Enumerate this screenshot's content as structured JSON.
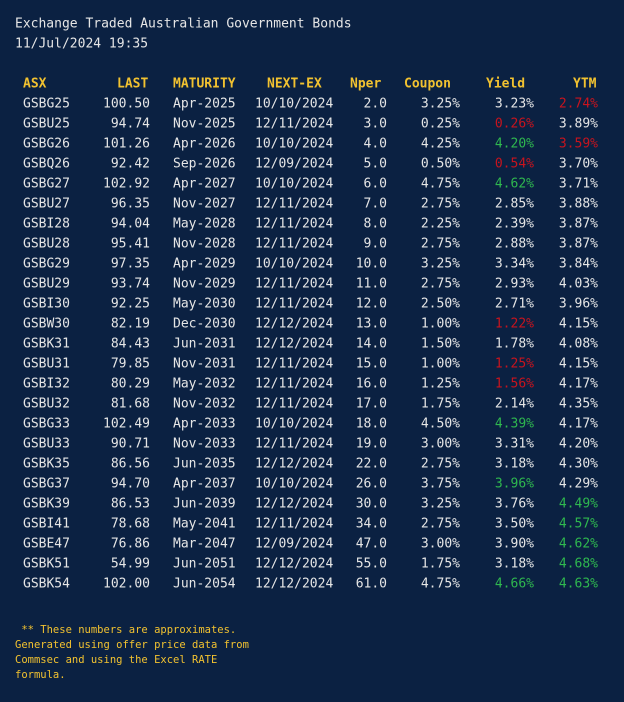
{
  "title": "Exchange Traded Australian Government Bonds",
  "timestamp": "11/Jul/2024 19:35",
  "table": {
    "header": [
      "ASX",
      "LAST",
      "MATURITY",
      "NEXT-EX",
      "Nper",
      "Coupon",
      "Yield",
      "YTM"
    ],
    "rows": [
      [
        "GSBG25",
        "100.50",
        "Apr-2025",
        "10/10/2024",
        "2.0",
        "3.25%",
        "3.23%",
        {
          "text": "2.74%",
          "color": "#c8141e"
        }
      ],
      [
        "GSBU25",
        "94.74",
        "Nov-2025",
        "12/11/2024",
        "3.0",
        "0.25%",
        {
          "text": "0.26%",
          "color": "#c8141e"
        },
        "3.89%"
      ],
      [
        "GSBG26",
        "101.26",
        "Apr-2026",
        "10/10/2024",
        "4.0",
        "4.25%",
        {
          "text": "4.20%",
          "color": "#2fb84f"
        },
        {
          "text": "3.59%",
          "color": "#c8141e"
        }
      ],
      [
        "GSBQ26",
        "92.42",
        "Sep-2026",
        "12/09/2024",
        "5.0",
        "0.50%",
        {
          "text": "0.54%",
          "color": "#c8141e"
        },
        "3.70%"
      ],
      [
        "GSBG27",
        "102.92",
        "Apr-2027",
        "10/10/2024",
        "6.0",
        "4.75%",
        {
          "text": "4.62%",
          "color": "#2fb84f"
        },
        "3.71%"
      ],
      [
        "GSBU27",
        "96.35",
        "Nov-2027",
        "12/11/2024",
        "7.0",
        "2.75%",
        "2.85%",
        "3.88%"
      ],
      [
        "GSBI28",
        "94.04",
        "May-2028",
        "12/11/2024",
        "8.0",
        "2.25%",
        "2.39%",
        "3.87%"
      ],
      [
        "GSBU28",
        "95.41",
        "Nov-2028",
        "12/11/2024",
        "9.0",
        "2.75%",
        "2.88%",
        "3.87%"
      ],
      [
        "GSBG29",
        "97.35",
        "Apr-2029",
        "10/10/2024",
        "10.0",
        "3.25%",
        "3.34%",
        "3.84%"
      ],
      [
        "GSBU29",
        "93.74",
        "Nov-2029",
        "12/11/2024",
        "11.0",
        "2.75%",
        "2.93%",
        "4.03%"
      ],
      [
        "GSBI30",
        "92.25",
        "May-2030",
        "12/11/2024",
        "12.0",
        "2.50%",
        "2.71%",
        "3.96%"
      ],
      [
        "GSBW30",
        "82.19",
        "Dec-2030",
        "12/12/2024",
        "13.0",
        "1.00%",
        {
          "text": "1.22%",
          "color": "#c8141e"
        },
        "4.15%"
      ],
      [
        "GSBK31",
        "84.43",
        "Jun-2031",
        "12/12/2024",
        "14.0",
        "1.50%",
        "1.78%",
        "4.08%"
      ],
      [
        "GSBU31",
        "79.85",
        "Nov-2031",
        "12/11/2024",
        "15.0",
        "1.00%",
        {
          "text": "1.25%",
          "color": "#c8141e"
        },
        "4.15%"
      ],
      [
        "GSBI32",
        "80.29",
        "May-2032",
        "12/11/2024",
        "16.0",
        "1.25%",
        {
          "text": "1.56%",
          "color": "#c8141e"
        },
        "4.17%"
      ],
      [
        "GSBU32",
        "81.68",
        "Nov-2032",
        "12/11/2024",
        "17.0",
        "1.75%",
        "2.14%",
        "4.35%"
      ],
      [
        "GSBG33",
        "102.49",
        "Apr-2033",
        "10/10/2024",
        "18.0",
        "4.50%",
        {
          "text": "4.39%",
          "color": "#2fb84f"
        },
        "4.17%"
      ],
      [
        "GSBU33",
        "90.71",
        "Nov-2033",
        "12/11/2024",
        "19.0",
        "3.00%",
        "3.31%",
        "4.20%"
      ],
      [
        "GSBK35",
        "86.56",
        "Jun-2035",
        "12/12/2024",
        "22.0",
        "2.75%",
        "3.18%",
        "4.30%"
      ],
      [
        "GSBG37",
        "94.70",
        "Apr-2037",
        "10/10/2024",
        "26.0",
        "3.75%",
        {
          "text": "3.96%",
          "color": "#2fb84f"
        },
        "4.29%"
      ],
      [
        "GSBK39",
        "86.53",
        "Jun-2039",
        "12/12/2024",
        "30.0",
        "3.25%",
        "3.76%",
        {
          "text": "4.49%",
          "color": "#2fb84f"
        }
      ],
      [
        "GSBI41",
        "78.68",
        "May-2041",
        "12/11/2024",
        "34.0",
        "2.75%",
        "3.50%",
        {
          "text": "4.57%",
          "color": "#2fb84f"
        }
      ],
      [
        "GSBE47",
        "76.86",
        "Mar-2047",
        "12/09/2024",
        "47.0",
        "3.00%",
        "3.90%",
        {
          "text": "4.62%",
          "color": "#2fb84f"
        }
      ],
      [
        "GSBK51",
        "54.99",
        "Jun-2051",
        "12/12/2024",
        "55.0",
        "1.75%",
        "3.18%",
        {
          "text": "4.68%",
          "color": "#2fb84f"
        }
      ],
      [
        "GSBK54",
        "102.00",
        "Jun-2054",
        "12/12/2024",
        "61.0",
        "4.75%",
        {
          "text": "4.66%",
          "color": "#2fb84f"
        },
        {
          "text": "4.63%",
          "color": "#2fb84f"
        }
      ]
    ]
  },
  "footnote": [
    " ** These numbers are approximates.",
    "Generated using offer price data from",
    "Commsec and using the Excel RATE",
    "formula."
  ]
}
